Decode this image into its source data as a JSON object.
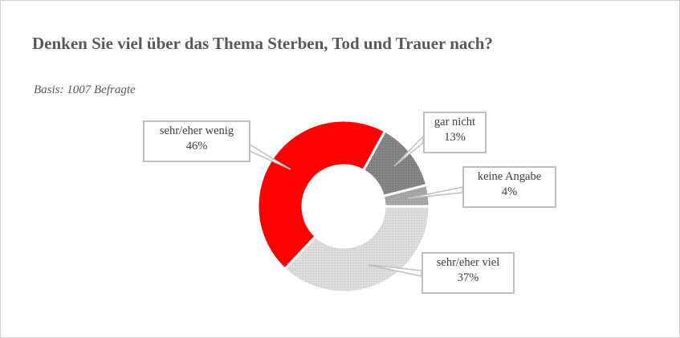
{
  "title": "Denken Sie viel über das Thema Sterben, Tod und Trauer nach?",
  "subtitle": "Basis: 1007 Befragte",
  "chart_data": {
    "type": "pie",
    "variant": "donut",
    "title": "Denken Sie viel über das Thema Sterben, Tod und Trauer nach?",
    "subtitle": "Basis: 1007 Befragte",
    "categories": [
      "sehr/eher viel",
      "sehr/eher wenig",
      "gar nicht",
      "keine Angabe"
    ],
    "values": [
      37,
      46,
      13,
      4
    ],
    "unit": "%",
    "colors": [
      "#d9d9d9",
      "#ff0000",
      "#808080",
      "#a6a6a6"
    ],
    "start_angle": "3 o'clock, clockwise",
    "legend": "none (callout data labels)"
  },
  "labels": {
    "viel": {
      "name": "sehr/eher viel",
      "value": "37%"
    },
    "wenig": {
      "name": "sehr/eher wenig",
      "value": "46%"
    },
    "garnicht": {
      "name": "gar nicht",
      "value": "13%"
    },
    "keine": {
      "name": "keine Angabe",
      "value": "4%"
    }
  }
}
